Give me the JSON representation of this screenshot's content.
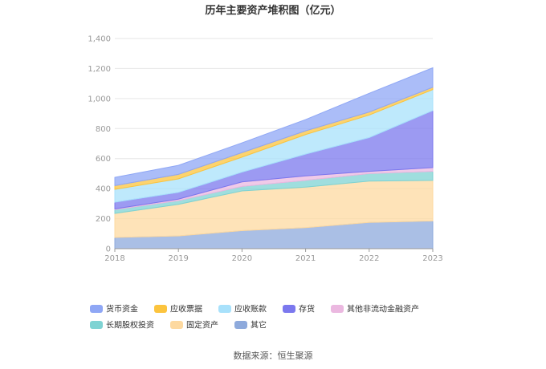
{
  "chart_data": {
    "type": "area",
    "stacked": true,
    "title": "历年主要资产堆积图（亿元）",
    "x": [
      "2018",
      "2019",
      "2020",
      "2021",
      "2022",
      "2023"
    ],
    "ylim": [
      0,
      1400
    ],
    "yticks": [
      "0",
      "200",
      "400",
      "600",
      "800",
      "1,000",
      "1,200",
      "1,400"
    ],
    "grid": true,
    "legend_position": "bottom",
    "series": [
      {
        "name": "其它",
        "color": "#8eaadc",
        "values": [
          75,
          85,
          120,
          140,
          175,
          185
        ]
      },
      {
        "name": "固定资产",
        "color": "#fdd9a0",
        "values": [
          160,
          210,
          265,
          270,
          275,
          270
        ]
      },
      {
        "name": "长期股权投资",
        "color": "#7fd3d3",
        "values": [
          25,
          25,
          30,
          45,
          50,
          60
        ]
      },
      {
        "name": "其他非流动金融资产",
        "color": "#ebb8e0",
        "values": [
          5,
          10,
          30,
          30,
          15,
          25
        ]
      },
      {
        "name": "存货",
        "color": "#7b78ee",
        "values": [
          45,
          45,
          65,
          145,
          225,
          380
        ]
      },
      {
        "name": "应收账款",
        "color": "#a8e1fb",
        "values": [
          85,
          90,
          100,
          130,
          150,
          140
        ]
      },
      {
        "name": "应收票据",
        "color": "#fcc43e",
        "values": [
          25,
          30,
          30,
          25,
          20,
          15
        ]
      },
      {
        "name": "货币资金",
        "color": "#8fa7f5",
        "values": [
          55,
          60,
          65,
          75,
          125,
          130
        ]
      }
    ],
    "legend_order": [
      "货币资金",
      "应收票据",
      "应收账款",
      "存货",
      "其他非流动金融资产",
      "长期股权投资",
      "固定资产",
      "其它"
    ]
  },
  "footer": {
    "source": "数据来源：恒生聚源"
  }
}
